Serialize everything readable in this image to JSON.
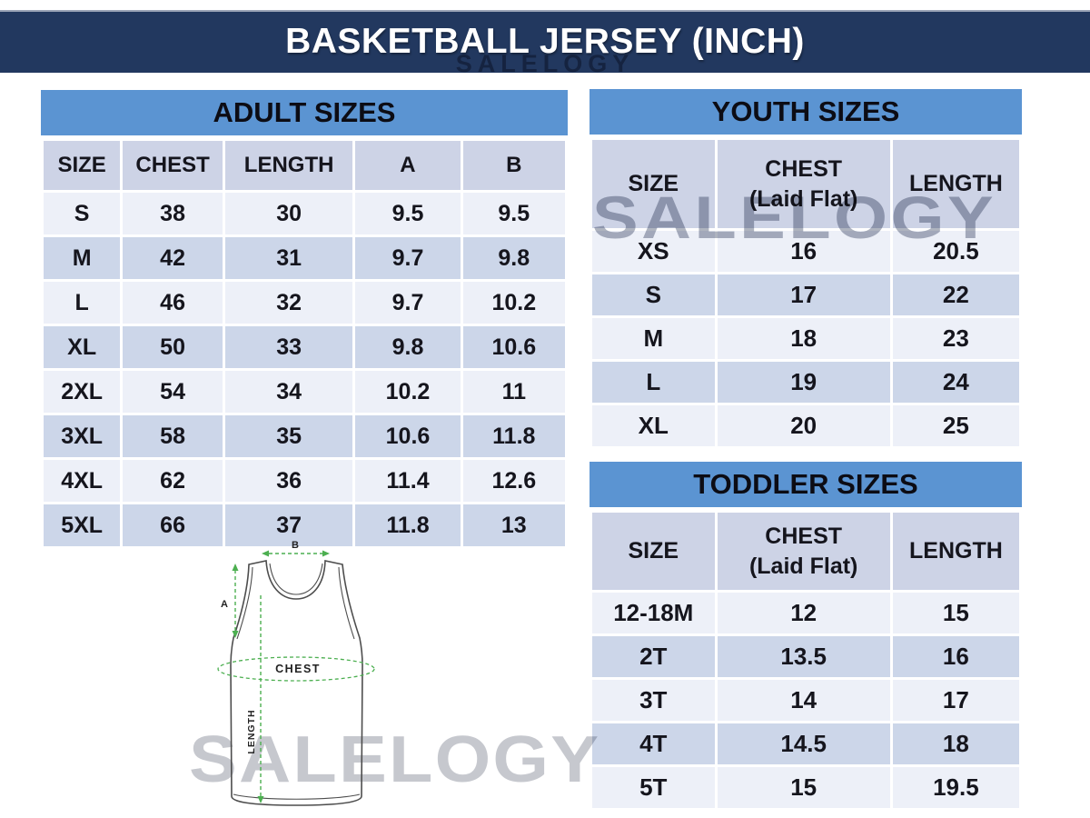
{
  "header": {
    "title": "BASKETBALL JERSEY (INCH)"
  },
  "watermark": {
    "text": "SALELOGY"
  },
  "tables": {
    "adult": {
      "title": "ADULT SIZES",
      "columns": [
        "SIZE",
        "CHEST",
        "LENGTH",
        "A",
        "B"
      ],
      "rows": [
        [
          "S",
          "38",
          "30",
          "9.5",
          "9.5"
        ],
        [
          "M",
          "42",
          "31",
          "9.7",
          "9.8"
        ],
        [
          "L",
          "46",
          "32",
          "9.7",
          "10.2"
        ],
        [
          "XL",
          "50",
          "33",
          "9.8",
          "10.6"
        ],
        [
          "2XL",
          "54",
          "34",
          "10.2",
          "11"
        ],
        [
          "3XL",
          "58",
          "35",
          "10.6",
          "11.8"
        ],
        [
          "4XL",
          "62",
          "36",
          "11.4",
          "12.6"
        ],
        [
          "5XL",
          "66",
          "37",
          "11.8",
          "13"
        ]
      ]
    },
    "youth": {
      "title": "YOUTH SIZES",
      "columns": [
        "SIZE",
        "CHEST\n(Laid Flat)",
        "LENGTH"
      ],
      "rows": [
        [
          "XS",
          "16",
          "20.5"
        ],
        [
          "S",
          "17",
          "22"
        ],
        [
          "M",
          "18",
          "23"
        ],
        [
          "L",
          "19",
          "24"
        ],
        [
          "XL",
          "20",
          "25"
        ]
      ]
    },
    "toddler": {
      "title": "TODDLER SIZES",
      "columns": [
        "SIZE",
        "CHEST\n(Laid Flat)",
        "LENGTH"
      ],
      "rows": [
        [
          "12-18M",
          "12",
          "15"
        ],
        [
          "2T",
          "13.5",
          "16"
        ],
        [
          "3T",
          "14",
          "17"
        ],
        [
          "4T",
          "14.5",
          "18"
        ],
        [
          "5T",
          "15",
          "19.5"
        ]
      ]
    }
  },
  "diagram": {
    "labels": {
      "a": "A",
      "b": "B",
      "chest": "CHEST",
      "length": "LENGTH"
    },
    "colors": {
      "outline": "#4d4d4d",
      "measure": "#4caf50"
    }
  },
  "colors": {
    "banner_bg": "#22385f",
    "table_title_bg": "#5b94d2",
    "row_light": "#edf0f8",
    "row_dark": "#ccd6e9",
    "header_row_bg": "#cdd3e6"
  }
}
